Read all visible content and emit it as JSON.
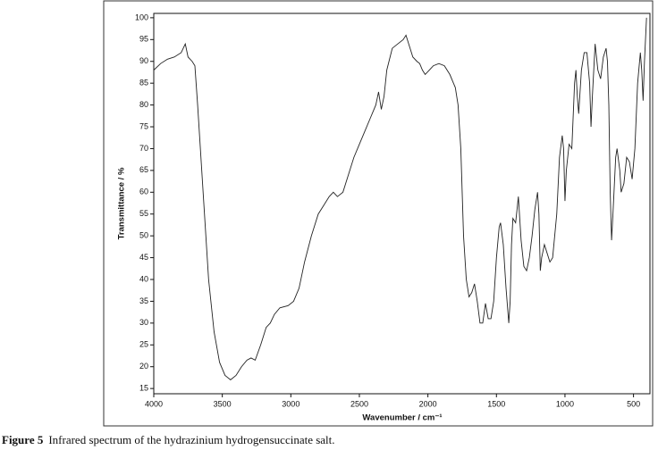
{
  "chart_data": {
    "type": "line",
    "x_label": "Wavenumber / cm⁻¹",
    "y_label": "Transmittance / %",
    "caption_label": "Figure 5",
    "caption": "Infrared spectrum of the hydrazinium hydrogensuccinate salt.",
    "color": "#222222",
    "xlim": [
      4000,
      380
    ],
    "ylim": [
      13.8,
      101
    ],
    "xticks": [
      4000,
      3500,
      3000,
      2500,
      2000,
      1500,
      1000,
      500
    ],
    "yticks": [
      15,
      20,
      25,
      30,
      35,
      40,
      45,
      50,
      55,
      60,
      65,
      70,
      75,
      80,
      85,
      90,
      95,
      100
    ],
    "x": [
      4000,
      3950,
      3900,
      3850,
      3800,
      3770,
      3750,
      3720,
      3700,
      3680,
      3650,
      3620,
      3600,
      3560,
      3520,
      3480,
      3440,
      3400,
      3360,
      3320,
      3290,
      3260,
      3220,
      3180,
      3150,
      3120,
      3080,
      3020,
      2980,
      2940,
      2900,
      2850,
      2800,
      2760,
      2720,
      2690,
      2660,
      2620,
      2580,
      2540,
      2500,
      2460,
      2420,
      2380,
      2360,
      2340,
      2320,
      2300,
      2260,
      2220,
      2180,
      2160,
      2140,
      2110,
      2080,
      2060,
      2040,
      2020,
      1990,
      1960,
      1920,
      1880,
      1840,
      1800,
      1780,
      1760,
      1740,
      1720,
      1700,
      1680,
      1660,
      1640,
      1620,
      1600,
      1580,
      1560,
      1540,
      1520,
      1500,
      1480,
      1470,
      1450,
      1430,
      1410,
      1400,
      1390,
      1380,
      1360,
      1340,
      1320,
      1300,
      1280,
      1260,
      1240,
      1220,
      1200,
      1190,
      1180,
      1170,
      1150,
      1130,
      1110,
      1090,
      1060,
      1040,
      1020,
      1010,
      1000,
      990,
      970,
      950,
      930,
      920,
      910,
      900,
      880,
      860,
      840,
      820,
      810,
      800,
      780,
      760,
      740,
      720,
      700,
      690,
      680,
      670,
      660,
      650,
      630,
      620,
      600,
      590,
      570,
      550,
      530,
      510,
      490,
      470,
      450,
      440,
      430,
      420,
      405
    ],
    "values": [
      88,
      89.5,
      90.5,
      91,
      92,
      94,
      91,
      90,
      89,
      80,
      65,
      50,
      40,
      28,
      21,
      18,
      17,
      18,
      20,
      21.5,
      22,
      21.5,
      25,
      29,
      30,
      32,
      33.5,
      34,
      35,
      38,
      44,
      50,
      55,
      57,
      59,
      60,
      59,
      60,
      64,
      68,
      71,
      74,
      77,
      80,
      83,
      79,
      82,
      88,
      93,
      94,
      95,
      96,
      94,
      91,
      90,
      89.5,
      88,
      87,
      88,
      89,
      89.5,
      89,
      87,
      84,
      80,
      70,
      50,
      40,
      36,
      37,
      39,
      35,
      30,
      30,
      34.5,
      31,
      31,
      35,
      45,
      52,
      53,
      48,
      38,
      30,
      35,
      48,
      54,
      53,
      59,
      49,
      43,
      42,
      45,
      50,
      56,
      60,
      55,
      42,
      45,
      48,
      46,
      44,
      45,
      55,
      68,
      73,
      70,
      58,
      65,
      71,
      70,
      85,
      88,
      82,
      78,
      88,
      92,
      92,
      85,
      75,
      82,
      94,
      88,
      86,
      91,
      93,
      90,
      80,
      60,
      49,
      55,
      68,
      70,
      65,
      60,
      62,
      68,
      67,
      63,
      70,
      85,
      92,
      88,
      81,
      90,
      100
    ]
  }
}
